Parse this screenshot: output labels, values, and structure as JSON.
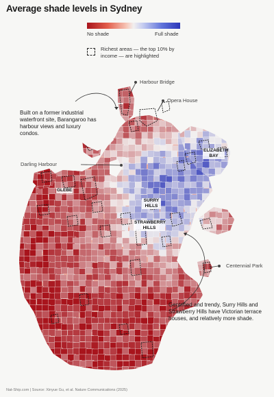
{
  "title": "Average shade levels in Sydney",
  "legend": {
    "low_label": "No shade",
    "high_label": "Full shade",
    "box_label": "Richest areas — the top 10% by income — are highlighted",
    "colors": {
      "no_shade": "#a8141c",
      "neutral": "#f2efef",
      "full_shade": "#2b36b8"
    }
  },
  "places": {
    "harbour_bridge": "Harbour Bridge",
    "opera_house": "Opera House",
    "darling_harbour": "Darling Harbour",
    "centennial_park": "Centennial Park"
  },
  "map_labels": {
    "elizabeth_bay": "ELIZABETH BAY",
    "glebe": "GLEBE",
    "surry_hills": "SURRY HILLS",
    "strawberry_hills": "STRAWBERRY HILLS"
  },
  "annotations": {
    "barangaroo": "Built on a former industrial waterfront site, Barangaroo has harbour views and luxury condos.",
    "surry": "Gentrified and trendy, Surry Hills and Strawberry Hills have Victorian terrace houses, and relatively more shade."
  },
  "footer": "Nat-Ship.com | Source: Xinyue Gu, et al. Nature Communications (2025)"
}
